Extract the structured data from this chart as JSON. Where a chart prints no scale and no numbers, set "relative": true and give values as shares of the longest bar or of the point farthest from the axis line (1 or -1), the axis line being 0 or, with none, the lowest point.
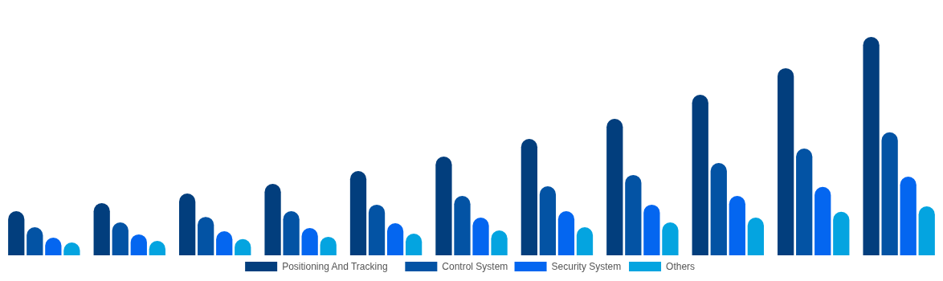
{
  "chart_data": {
    "type": "bar",
    "relative": true,
    "legend": "bottom",
    "categories": [
      null,
      null,
      null,
      null,
      null,
      null,
      null,
      null,
      null,
      null,
      null
    ],
    "series": [
      {
        "name": "Positioning And Tracking",
        "color": "#023e7d",
        "values": [
          0.202,
          0.239,
          0.283,
          0.327,
          0.386,
          0.452,
          0.533,
          0.625,
          0.735,
          0.857,
          1
        ]
      },
      {
        "name": "Control System",
        "color": "#0353a4",
        "values": [
          0.129,
          0.151,
          0.176,
          0.202,
          0.232,
          0.272,
          0.316,
          0.368,
          0.423,
          0.489,
          0.563
        ]
      },
      {
        "name": "Security System",
        "color": "#0466f0",
        "values": [
          0.081,
          0.096,
          0.11,
          0.125,
          0.147,
          0.173,
          0.202,
          0.232,
          0.272,
          0.313,
          0.36
        ]
      },
      {
        "name": "Others",
        "color": "#04a4e0",
        "values": [
          0.059,
          0.066,
          0.074,
          0.085,
          0.099,
          0.114,
          0.129,
          0.151,
          0.173,
          0.199,
          0.224
        ]
      }
    ]
  }
}
